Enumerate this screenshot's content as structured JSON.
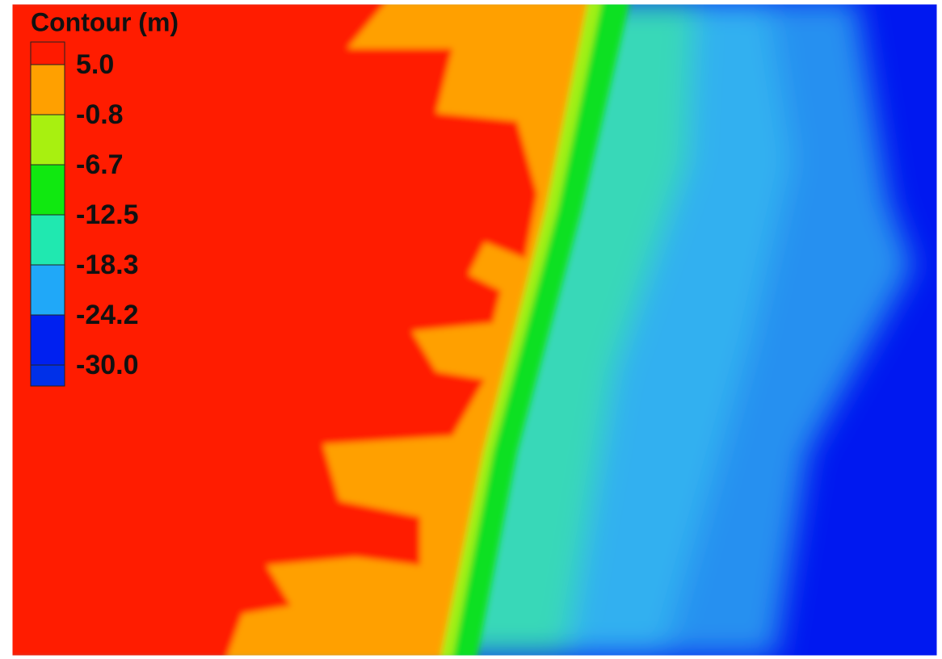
{
  "legend": {
    "title": "Contour (m)",
    "levels": [
      {
        "value": 5,
        "label": "5.0"
      },
      {
        "value": -0.8,
        "label": "-0.8"
      },
      {
        "value": -6.7,
        "label": "-6.7"
      },
      {
        "value": -12.5,
        "label": "-12.5"
      },
      {
        "value": -18.3,
        "label": "-18.3"
      },
      {
        "value": -24.2,
        "label": "-24.2"
      },
      {
        "value": -30,
        "label": "-30.0"
      }
    ],
    "colors": [
      "#ff1a00",
      "#ffa000",
      "#a8f010",
      "#10e810",
      "#20e8b0",
      "#20a8f8",
      "#0020f0",
      "#0030e8"
    ]
  }
}
